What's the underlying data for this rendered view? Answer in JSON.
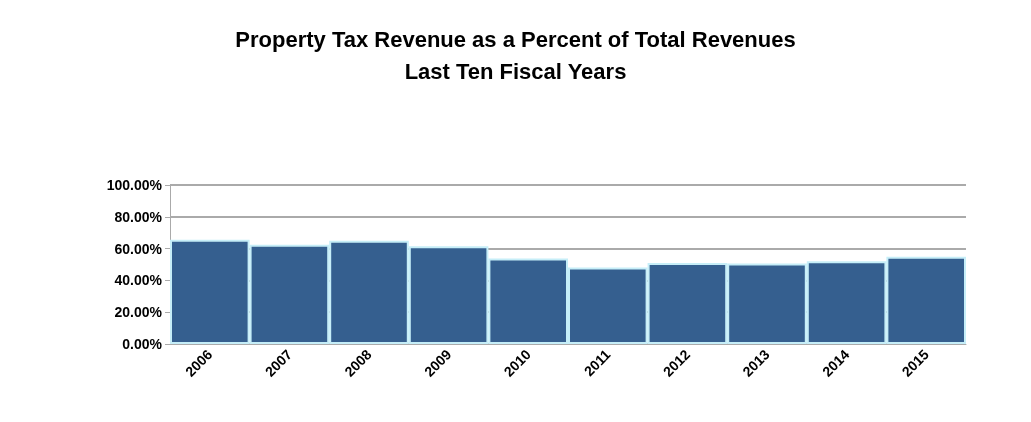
{
  "chart_data": {
    "type": "bar",
    "title": "Property Tax Revenue as a Percent of Total Revenues\nLast Ten Fiscal Years",
    "categories": [
      "2006",
      "2007",
      "2008",
      "2009",
      "2010",
      "2011",
      "2012",
      "2013",
      "2014",
      "2015"
    ],
    "values": [
      65.5,
      62.4,
      65.0,
      61.4,
      53.8,
      48.1,
      50.9,
      50.7,
      52.1,
      54.8
    ],
    "color": "#355f8f",
    "ylim": [
      0,
      100
    ],
    "yticks": [
      {
        "value": 0,
        "label": "0.00%"
      },
      {
        "value": 20,
        "label": "20.00%"
      },
      {
        "value": 40,
        "label": "40.00%"
      },
      {
        "value": 60,
        "label": "60.00%"
      },
      {
        "value": 80,
        "label": "80.00%"
      },
      {
        "value": 100,
        "label": "100.00%"
      }
    ],
    "grid": "y"
  }
}
